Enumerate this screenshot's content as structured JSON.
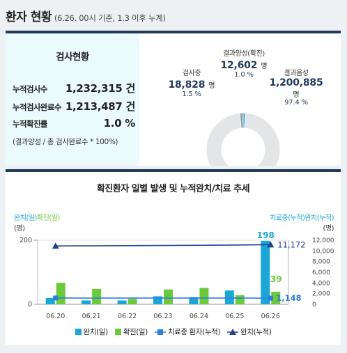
{
  "header": {
    "title": "환자 현황",
    "subtitle": "(6.26. 00시 기준, 1.3 이후 누계)"
  },
  "test_status": {
    "title": "검사현황",
    "rows": [
      {
        "label": "누적검사수",
        "value": "1,232,315 건"
      },
      {
        "label": "누적검사완료수",
        "value": "1,213,487 건"
      },
      {
        "label": "누적확진률",
        "value": "1.0 %"
      }
    ],
    "note": "(결과양성 / 총 검사완료수 * 100%)"
  },
  "donut": {
    "segments": [
      {
        "label": "결과양성(확진)",
        "value": "12,602",
        "unit": "명",
        "pct": "1.0 %",
        "share": 1.0,
        "color": "#1aa7d8"
      },
      {
        "label": "결과음성",
        "value": "1,200,885",
        "unit": "명",
        "pct": "97.4 %",
        "share": 97.4,
        "color": "#e4e5e6"
      },
      {
        "label": "검사중",
        "value": "18,828",
        "unit": "명",
        "pct": "1.5 %",
        "share": 1.5,
        "color": "#9aa0a6"
      }
    ]
  },
  "chart_data": {
    "type": "bar",
    "title": "확진환자 일별 발생 및 누적완치/치료 추세",
    "categories": [
      "06.20",
      "06.21",
      "06.22",
      "06.23",
      "06.24",
      "06.25",
      "06.26"
    ],
    "left_axis": {
      "label_part1": "완치(일)",
      "label_part2": "확진(일)",
      "unit": "(명)",
      "ticks": [
        "200",
        "0"
      ],
      "range": [
        0,
        200
      ]
    },
    "right_axis": {
      "label": "치료중(누적)완치(누적)",
      "unit": "(명)",
      "ticks": [
        "12,000",
        "10,000",
        "8,000",
        "6,000",
        "4,000",
        "2,000",
        "0"
      ],
      "range": [
        0,
        12000
      ]
    },
    "series": [
      {
        "name": "완치(일)",
        "type": "bar",
        "axis": "left",
        "color": "#1aa7d8",
        "values": [
          20,
          12,
          12,
          25,
          22,
          43,
          198
        ]
      },
      {
        "name": "확진(일)",
        "type": "bar",
        "axis": "left",
        "color": "#6cc93a",
        "values": [
          67,
          48,
          17,
          46,
          51,
          28,
          39
        ]
      },
      {
        "name": "치료중 환자(누적)",
        "type": "line",
        "axis": "right",
        "color": "#2c7fdb",
        "values": [
          1180,
          1160,
          1160,
          1170,
          1160,
          1160,
          1148
        ]
      },
      {
        "name": "완치(누적)",
        "type": "line",
        "axis": "right",
        "color": "#25408f",
        "values": [
          10930,
          10950,
          10980,
          11010,
          11050,
          11100,
          11172
        ]
      }
    ],
    "data_labels": {
      "bar_top": "198",
      "bar_second": "39",
      "line_end": "11,172",
      "line_low_end": "1,148"
    }
  }
}
